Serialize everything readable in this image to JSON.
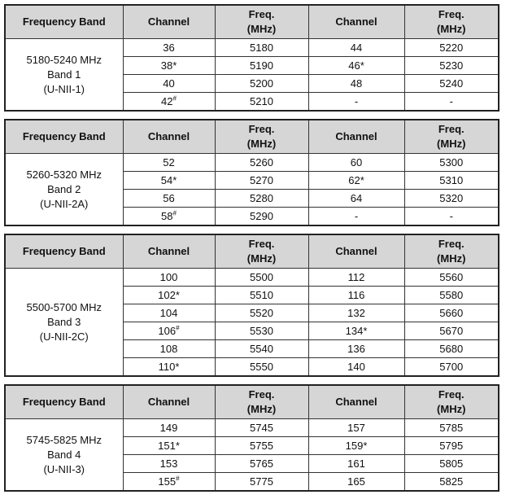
{
  "tables": [
    {
      "header": [
        "Frequency Band",
        "Channel",
        [
          "Freq.",
          "(MHz)"
        ],
        "Channel",
        [
          "Freq.",
          "(MHz)"
        ]
      ],
      "band": [
        "5180-5240 MHz",
        "Band 1",
        "(U-NII-1)"
      ],
      "rows": [
        [
          "36",
          "5180",
          "44",
          "5220"
        ],
        [
          "38*",
          "5190",
          "46*",
          "5230"
        ],
        [
          "40",
          "5200",
          "48",
          "5240"
        ],
        [
          {
            "text": "42",
            "sup": "#"
          },
          "5210",
          "-",
          "-"
        ]
      ]
    },
    {
      "header": [
        "Frequency Band",
        "Channel",
        [
          "Freq.",
          "(MHz)"
        ],
        "Channel",
        [
          "Freq.",
          "(MHz)"
        ]
      ],
      "band": [
        "5260-5320 MHz",
        "Band 2",
        "(U-NII-2A)"
      ],
      "rows": [
        [
          "52",
          "5260",
          "60",
          "5300"
        ],
        [
          "54*",
          "5270",
          "62*",
          "5310"
        ],
        [
          "56",
          "5280",
          "64",
          "5320"
        ],
        [
          {
            "text": "58",
            "sup": "#"
          },
          "5290",
          "-",
          "-"
        ]
      ]
    },
    {
      "header": [
        "Frequency Band",
        "Channel",
        [
          "Freq.",
          "(MHz)"
        ],
        "Channel",
        [
          "Freq.",
          "(MHz)"
        ]
      ],
      "band": [
        "5500-5700 MHz",
        "Band 3",
        "(U-NII-2C)"
      ],
      "rows": [
        [
          "100",
          "5500",
          "112",
          "5560"
        ],
        [
          "102*",
          "5510",
          "116",
          "5580"
        ],
        [
          "104",
          "5520",
          "132",
          "5660"
        ],
        [
          {
            "text": "106",
            "sup": "#"
          },
          "5530",
          "134*",
          "5670"
        ],
        [
          "108",
          "5540",
          "136",
          "5680"
        ],
        [
          "110*",
          "5550",
          "140",
          "5700"
        ]
      ]
    },
    {
      "header": [
        "Frequency Band",
        "Channel",
        [
          "Freq.",
          "(MHz)"
        ],
        "Channel",
        [
          "Freq.",
          "(MHz)"
        ]
      ],
      "band": [
        "5745-5825 MHz",
        "Band 4",
        "(U-NII-3)"
      ],
      "rows": [
        [
          "149",
          "5745",
          "157",
          "5785"
        ],
        [
          "151*",
          "5755",
          "159*",
          "5795"
        ],
        [
          "153",
          "5765",
          "161",
          "5805"
        ],
        [
          {
            "text": "155",
            "sup": "#"
          },
          "5775",
          "165",
          "5825"
        ]
      ]
    }
  ]
}
